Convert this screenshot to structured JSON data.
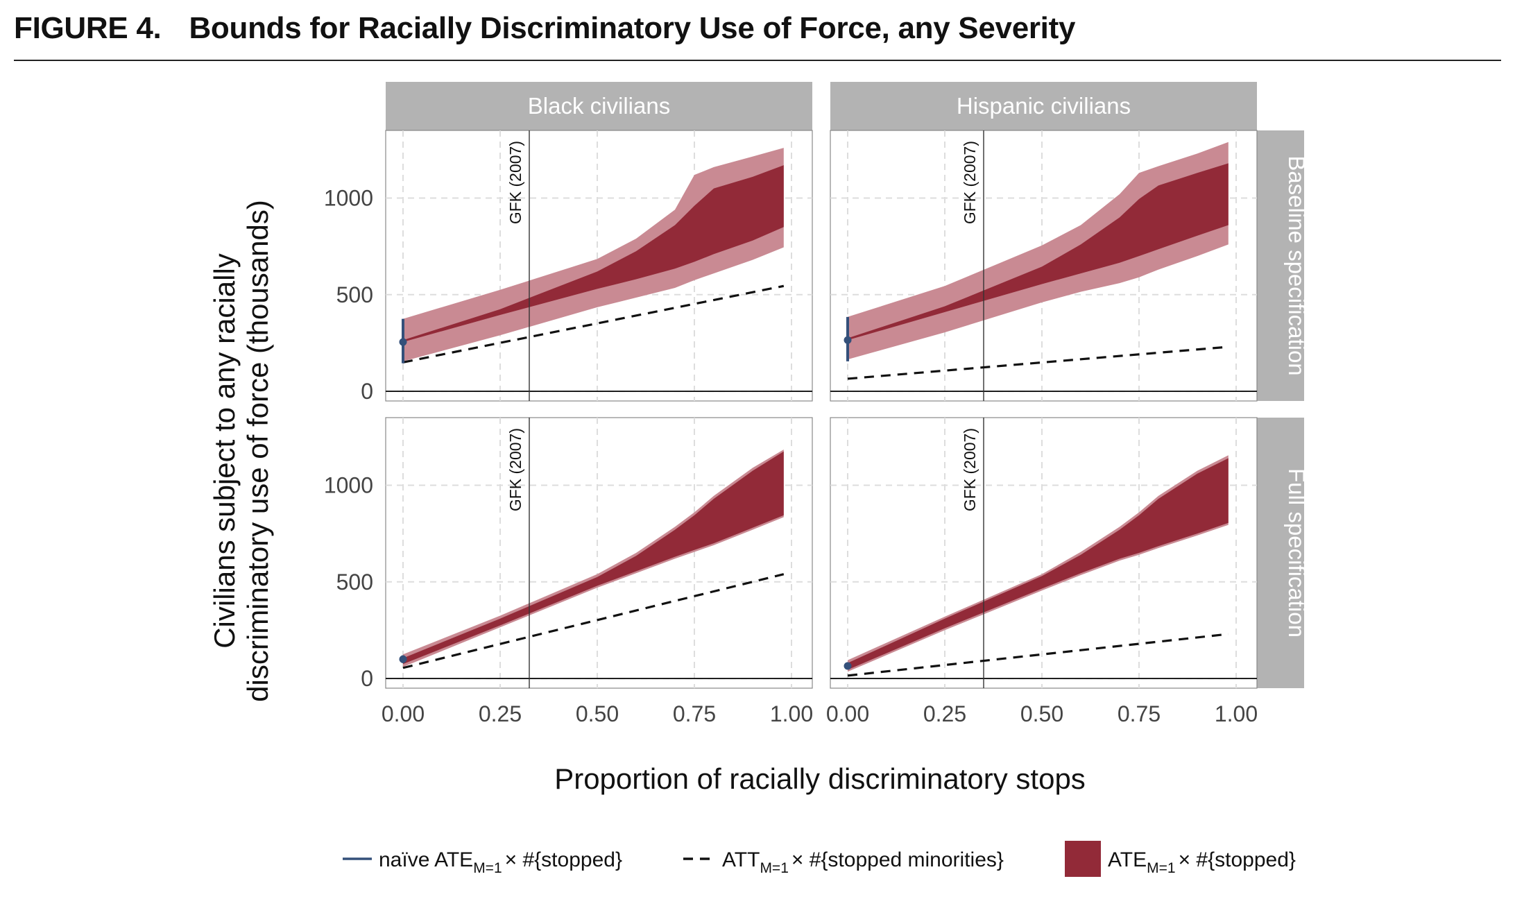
{
  "figure": {
    "label": "FIGURE 4.",
    "title": "Bounds for Racially Discriminatory Use of Force, any Severity"
  },
  "colors": {
    "strip": "#b3b3b3",
    "inner_band": "#922a38",
    "outer_band": "#c98a93",
    "naive": "#34507a",
    "grid": "#dddddd"
  },
  "chart_data": {
    "type": "area",
    "xlabel": "Proportion of racially discriminatory stops",
    "ylabel_lines": [
      "Civilians subject to any racially",
      "discriminatory use of force (thousands)"
    ],
    "xlim": [
      0,
      1
    ],
    "ylim": [
      -50,
      1350
    ],
    "x_ticks": [
      0,
      0.25,
      0.5,
      0.75,
      1
    ],
    "x_tick_labels": [
      "0.00",
      "0.25",
      "0.50",
      "0.75",
      "1.00"
    ],
    "y_ticks": [
      0,
      500,
      1000
    ],
    "y_tick_labels": [
      "0",
      "500",
      "1000"
    ],
    "columns": [
      "Black civilians",
      "Hispanic civilians"
    ],
    "rows": [
      "Baseline specification",
      "Full specification"
    ],
    "vline_label": "GFK (2007)",
    "legend": [
      {
        "type": "line",
        "pre": "naïve ATE",
        "sub": "M=1",
        "post": "× #{stopped}"
      },
      {
        "type": "dashed",
        "pre": "ATT",
        "sub": "M=1",
        "post": "× #{stopped minorities}"
      },
      {
        "type": "fill",
        "pre": "ATE",
        "sub": "M=1",
        "post": "× #{stopped}"
      }
    ],
    "panels": [
      {
        "column": "Black civilians",
        "row": "Baseline specification",
        "vline_x": 0.325,
        "naive": {
          "x": 0,
          "estimate": 255,
          "low": 145,
          "high": 375
        },
        "att_dashed": {
          "x": [
            0,
            0.98
          ],
          "y": [
            150,
            545
          ]
        },
        "outer_band": {
          "x": [
            0,
            0.25,
            0.5,
            0.6,
            0.7,
            0.75,
            0.8,
            0.9,
            0.98
          ],
          "lower": [
            155,
            290,
            435,
            485,
            535,
            575,
            610,
            680,
            745
          ],
          "upper": [
            375,
            525,
            685,
            790,
            940,
            1120,
            1160,
            1215,
            1260
          ]
        },
        "inner_band": {
          "x": [
            0,
            0.25,
            0.5,
            0.6,
            0.7,
            0.75,
            0.8,
            0.9,
            0.98
          ],
          "lower": [
            255,
            395,
            530,
            580,
            635,
            670,
            710,
            780,
            850
          ],
          "upper": [
            265,
            425,
            620,
            725,
            860,
            960,
            1050,
            1110,
            1170
          ]
        }
      },
      {
        "column": "Hispanic civilians",
        "row": "Baseline specification",
        "vline_x": 0.35,
        "naive": {
          "x": 0,
          "estimate": 265,
          "low": 155,
          "high": 385
        },
        "att_dashed": {
          "x": [
            0,
            0.98
          ],
          "y": [
            65,
            230
          ]
        },
        "outer_band": {
          "x": [
            0,
            0.25,
            0.5,
            0.6,
            0.7,
            0.75,
            0.8,
            0.9,
            0.98
          ],
          "lower": [
            165,
            305,
            460,
            515,
            560,
            590,
            630,
            700,
            760
          ],
          "upper": [
            385,
            545,
            755,
            860,
            1020,
            1130,
            1165,
            1230,
            1290
          ]
        },
        "inner_band": {
          "x": [
            0,
            0.25,
            0.5,
            0.6,
            0.7,
            0.75,
            0.8,
            0.9,
            0.98
          ],
          "lower": [
            265,
            410,
            555,
            610,
            665,
            700,
            735,
            805,
            860
          ],
          "upper": [
            275,
            440,
            645,
            760,
            900,
            995,
            1065,
            1130,
            1180
          ]
        }
      },
      {
        "column": "Black civilians",
        "row": "Full specification",
        "vline_x": 0.325,
        "naive": {
          "x": 0,
          "estimate": 100,
          "low": 80,
          "high": 120
        },
        "att_dashed": {
          "x": [
            0,
            0.98
          ],
          "y": [
            55,
            540
          ]
        },
        "outer_band": {
          "x": [
            0,
            0.25,
            0.5,
            0.6,
            0.7,
            0.75,
            0.8,
            0.9,
            0.98
          ],
          "lower": [
            60,
            265,
            470,
            545,
            620,
            655,
            690,
            770,
            835
          ],
          "upper": [
            125,
            325,
            540,
            650,
            785,
            860,
            945,
            1090,
            1185
          ]
        },
        "inner_band": {
          "x": [
            0,
            0.25,
            0.5,
            0.6,
            0.7,
            0.75,
            0.8,
            0.9,
            0.98
          ],
          "lower": [
            75,
            275,
            480,
            555,
            630,
            665,
            700,
            780,
            845
          ],
          "upper": [
            105,
            310,
            525,
            635,
            770,
            845,
            930,
            1075,
            1175
          ]
        }
      },
      {
        "column": "Hispanic civilians",
        "row": "Full specification",
        "vline_x": 0.35,
        "naive": {
          "x": 0,
          "estimate": 65,
          "low": 55,
          "high": 78
        },
        "att_dashed": {
          "x": [
            0,
            0.98
          ],
          "y": [
            15,
            230
          ]
        },
        "outer_band": {
          "x": [
            0,
            0.25,
            0.5,
            0.6,
            0.7,
            0.75,
            0.8,
            0.9,
            0.98
          ],
          "lower": [
            35,
            250,
            455,
            535,
            610,
            640,
            675,
            740,
            795
          ],
          "upper": [
            95,
            320,
            540,
            655,
            785,
            860,
            945,
            1075,
            1155
          ]
        },
        "inner_band": {
          "x": [
            0,
            0.25,
            0.5,
            0.6,
            0.7,
            0.75,
            0.8,
            0.9,
            0.98
          ],
          "lower": [
            45,
            260,
            465,
            545,
            620,
            650,
            685,
            750,
            805
          ],
          "upper": [
            80,
            310,
            530,
            640,
            770,
            845,
            930,
            1060,
            1140
          ]
        }
      }
    ]
  }
}
